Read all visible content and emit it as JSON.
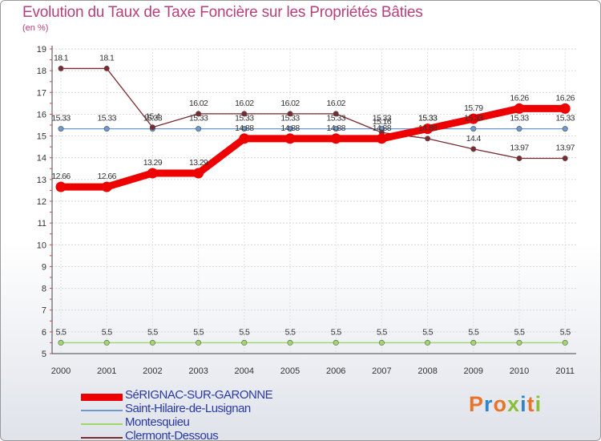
{
  "title": "Evolution du Taux de Taxe Foncière sur les Propriétés Bâties",
  "unit_label": "(en %)",
  "brand": {
    "text": "Proxiti",
    "letter_colors": [
      "#e8742a",
      "#2e86c8",
      "#e8742a",
      "#8bbf3a",
      "#2e86c8",
      "#e8742a",
      "#8bbf3a"
    ]
  },
  "chart_data": {
    "type": "line",
    "title": "Evolution du Taux de Taxe Foncière sur les Propriétés Bâties",
    "ylabel": "(en %)",
    "xlabel": "",
    "x": [
      "2000",
      "2001",
      "2002",
      "2003",
      "2004",
      "2005",
      "2006",
      "2007",
      "2008",
      "2009",
      "2010",
      "2011"
    ],
    "ylim": [
      5,
      19
    ],
    "yticks": [
      5,
      6,
      7,
      8,
      9,
      10,
      11,
      12,
      13,
      14,
      15,
      16,
      17,
      18,
      19
    ],
    "grid": true,
    "legend_position": "bottom-left",
    "series": [
      {
        "name": "SéRIGNAC-SUR-GARONNE",
        "color": "#ee0000",
        "values": [
          12.66,
          12.66,
          13.29,
          13.29,
          14.88,
          14.88,
          14.88,
          14.88,
          15.33,
          15.79,
          16.26,
          16.26
        ],
        "labels": [
          "12.66",
          "12.66",
          "13.29",
          "13.29",
          "14.88",
          "14.88",
          "14.88",
          "14.88",
          "15.33",
          "15.79",
          "16.26",
          "16.26"
        ]
      },
      {
        "name": "Saint-Hilaire-de-Lusignan",
        "color": "#6a9ad0",
        "values": [
          15.33,
          15.33,
          15.33,
          15.33,
          15.33,
          15.33,
          15.33,
          15.33,
          15.33,
          15.33,
          15.33,
          15.33
        ],
        "labels": [
          "15.33",
          "15.33",
          "15.33",
          "15.33",
          "15.33",
          "15.33",
          "15.33",
          "15.33",
          "15.33",
          "15.33",
          "15.33",
          "15.33"
        ]
      },
      {
        "name": "Montesquieu",
        "color": "#9ed86a",
        "values": [
          5.5,
          5.5,
          5.5,
          5.5,
          5.5,
          5.5,
          5.5,
          5.5,
          5.5,
          5.5,
          5.5,
          5.5
        ],
        "labels": [
          "5.5",
          "5.5",
          "5.5",
          "5.5",
          "5.5",
          "5.5",
          "5.5",
          "5.5",
          "5.5",
          "5.5",
          "5.5",
          "5.5"
        ]
      },
      {
        "name": "Clermont-Dessous",
        "color": "#7a2a30",
        "values": [
          18.1,
          18.1,
          15.4,
          16.02,
          16.02,
          16.02,
          16.02,
          15.16,
          14.88,
          14.4,
          13.97,
          13.97
        ],
        "labels": [
          "18.1",
          "18.1",
          "15.4",
          "16.02",
          "16.02",
          "16.02",
          "16.02",
          "15.16",
          "14.88",
          "14.4",
          "13.97",
          "13.97"
        ]
      }
    ]
  }
}
